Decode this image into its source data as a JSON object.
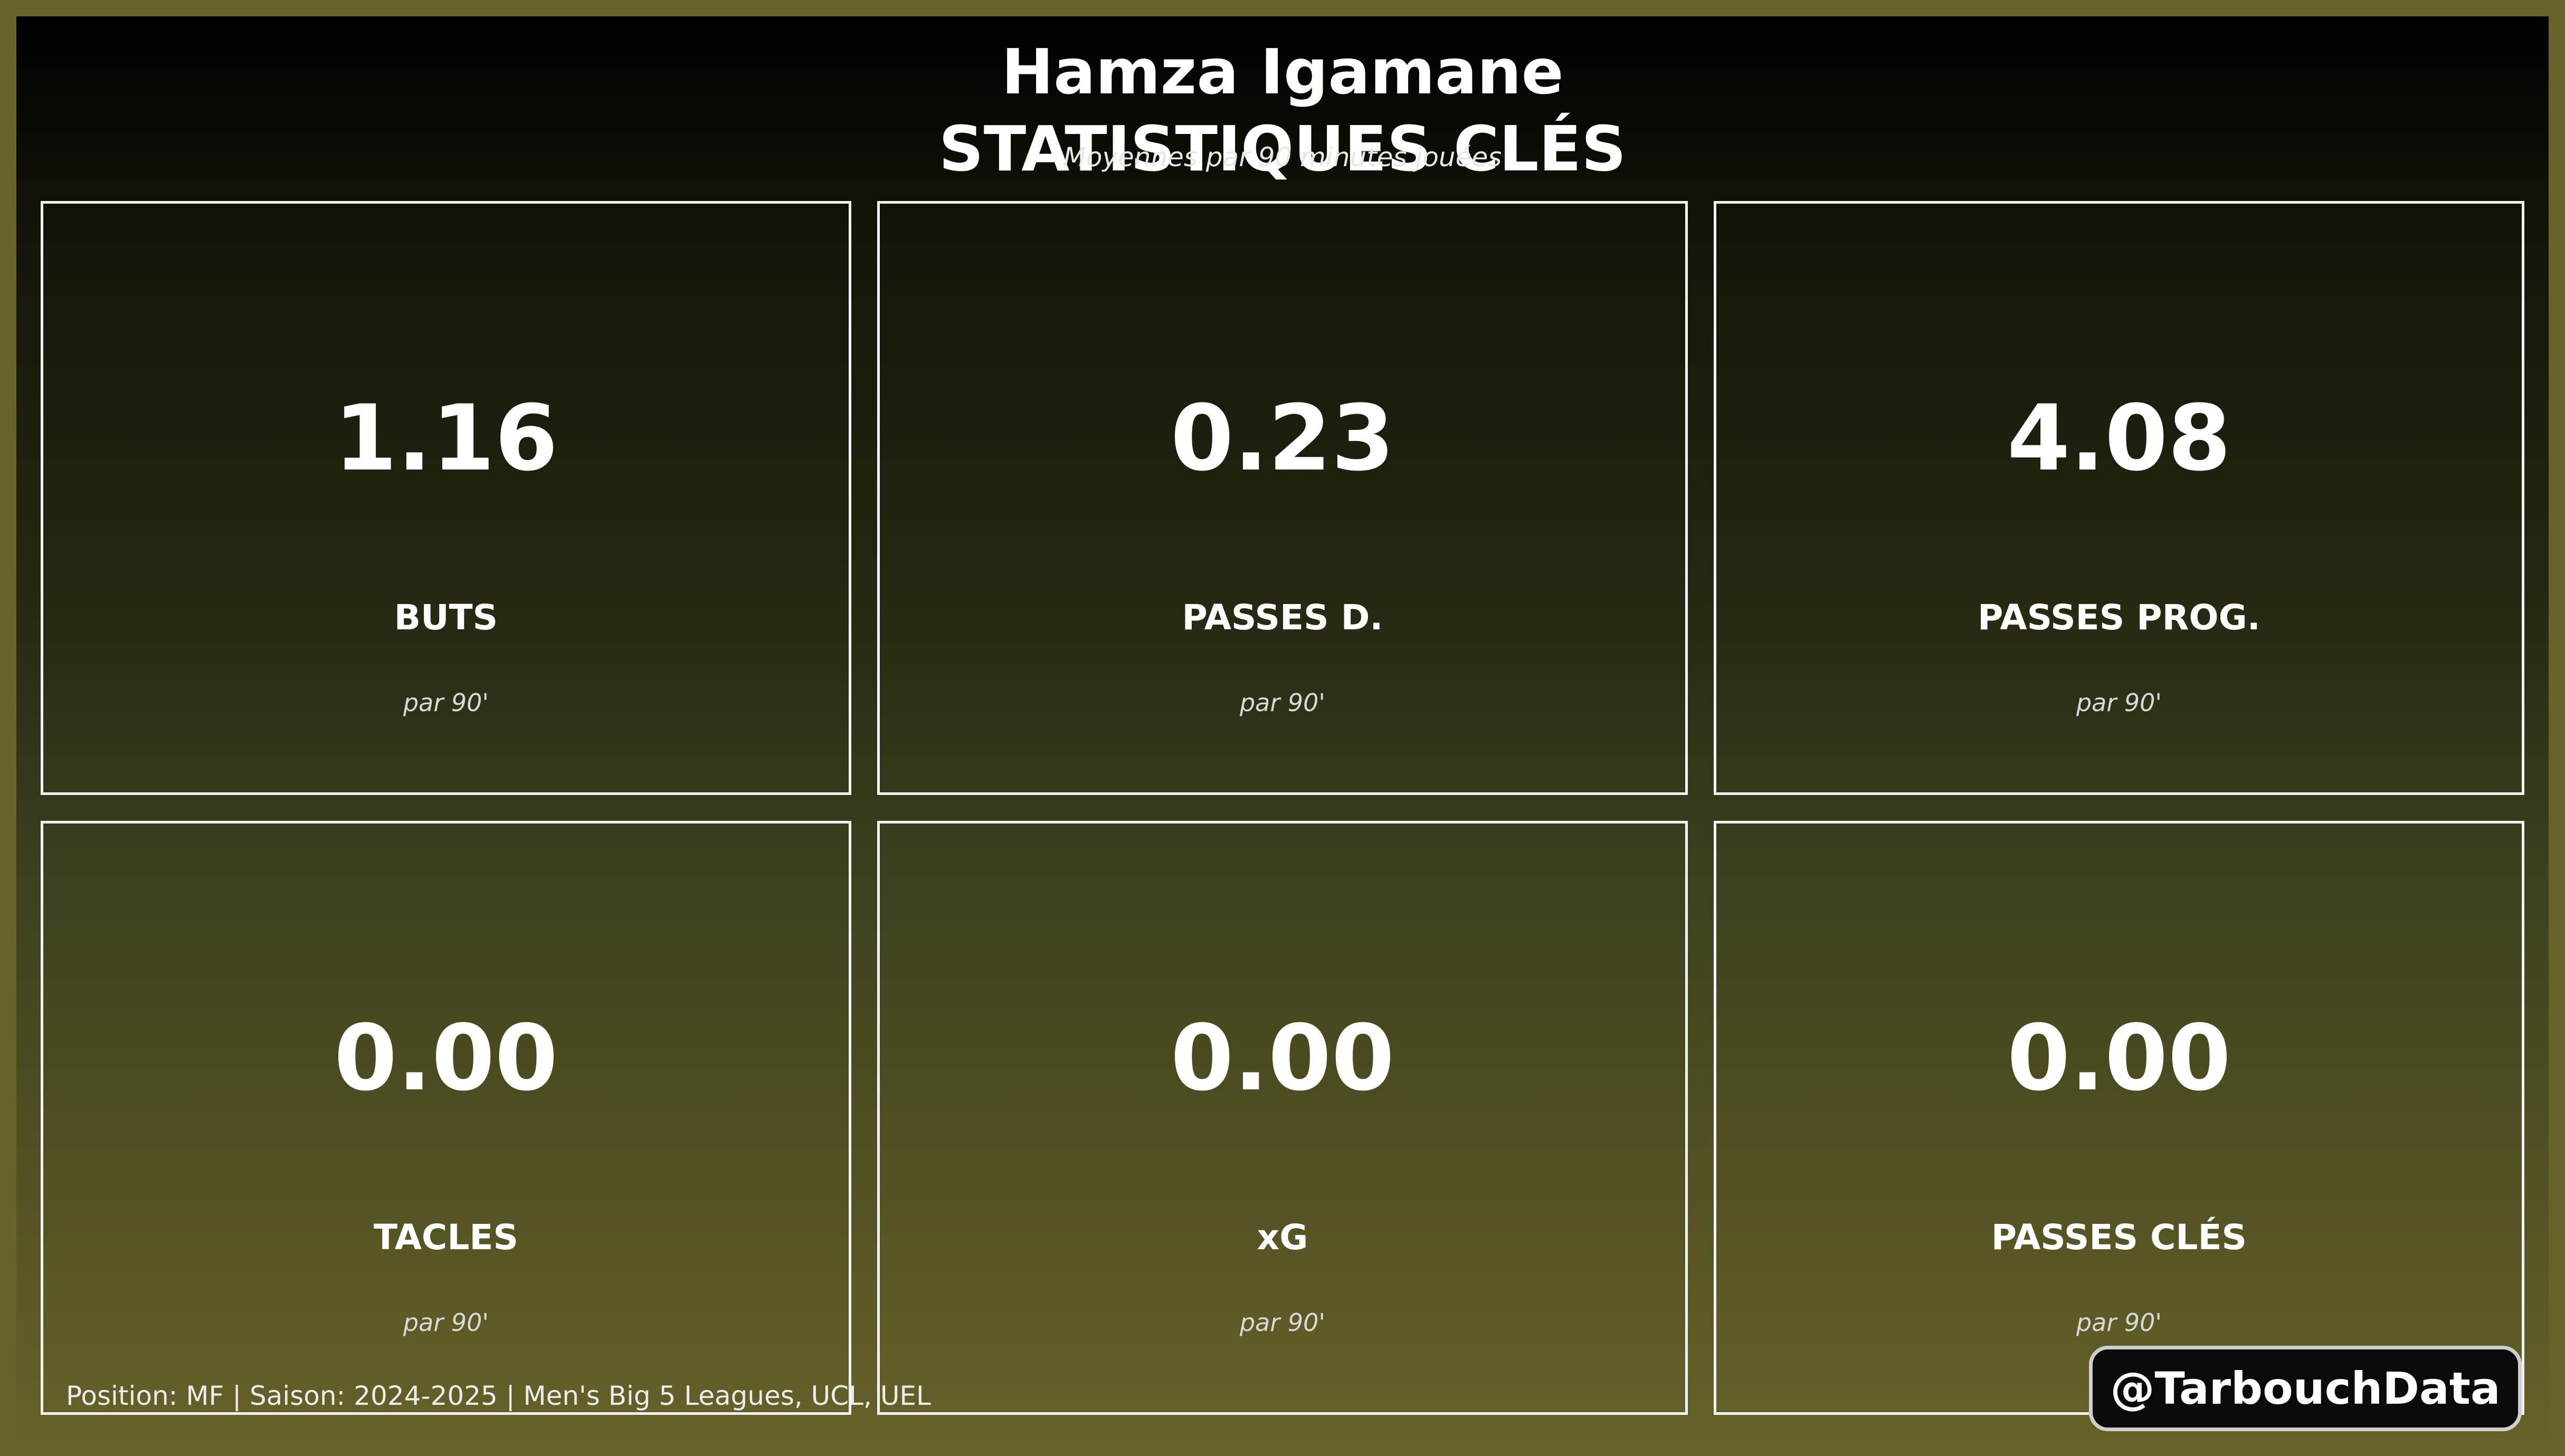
{
  "header": {
    "player_name": "Hamza Igamane",
    "title": "STATISTIQUES CLÉS",
    "subtitle": "Moyennes par 90 minutes jouées"
  },
  "stats": [
    {
      "value": "1.16",
      "label": "BUTS",
      "unit": "par 90'"
    },
    {
      "value": "0.23",
      "label": "PASSES D.",
      "unit": "par 90'"
    },
    {
      "value": "4.08",
      "label": "PASSES PROG.",
      "unit": "par 90'"
    },
    {
      "value": "0.00",
      "label": "TACLES",
      "unit": "par 90'"
    },
    {
      "value": "0.00",
      "label": "xG",
      "unit": "par 90'"
    },
    {
      "value": "0.00",
      "label": "PASSES CLÉS",
      "unit": "par 90'"
    }
  ],
  "footer": {
    "info": "Position: MF | Saison: 2024-2025 | Men's Big 5 Leagues, UCL, UEL"
  },
  "brand": {
    "handle": "@TarbouchData"
  },
  "colors": {
    "background": "#676229",
    "text": "#ffffff",
    "card_border": "#f2f2f2"
  }
}
